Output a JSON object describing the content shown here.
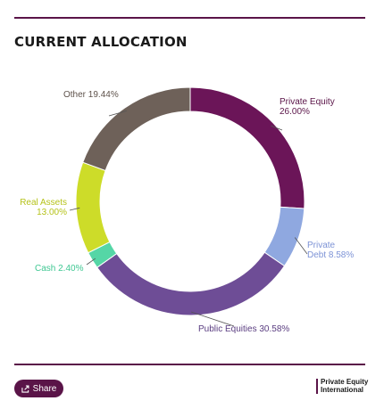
{
  "header": {
    "title": "CURRENT ALLOCATION"
  },
  "chart_data": {
    "type": "pie",
    "donut": true,
    "title": "CURRENT ALLOCATION",
    "slices": [
      {
        "label_lines": [
          "Private Equity",
          "26.00%"
        ],
        "name": "Private Equity",
        "value": 26.0,
        "color": "#6b1558"
      },
      {
        "label_lines": [
          "Private",
          "Debt 8.58%"
        ],
        "name": "Private Debt",
        "value": 8.58,
        "color": "#8fa8e0"
      },
      {
        "label_lines": [
          "Public Equities 30.58%"
        ],
        "name": "Public Equities",
        "value": 30.58,
        "color": "#6e4d96"
      },
      {
        "label_lines": [
          "Cash 2.40%"
        ],
        "name": "Cash",
        "value": 2.4,
        "color": "#55d6a6"
      },
      {
        "label_lines": [
          "Real Assets",
          "13.00%"
        ],
        "name": "Real Assets",
        "value": 13.0,
        "color": "#cddc29"
      },
      {
        "label_lines": [
          "Other 19.44%"
        ],
        "name": "Other",
        "value": 19.44,
        "color": "#6e6159"
      }
    ]
  },
  "footer": {
    "share_label": "Share",
    "logo_line1": "Private Equity",
    "logo_line2": "International"
  }
}
